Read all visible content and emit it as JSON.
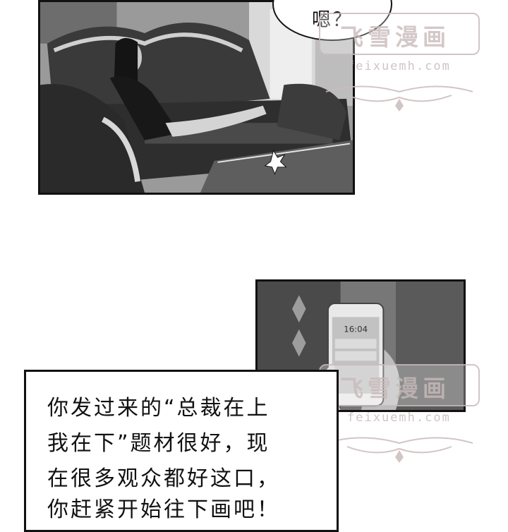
{
  "speech_bubble": {
    "text": "嗯？"
  },
  "narration": {
    "lines": [
      "你发过来的“总裁在上",
      "我在下”题材很好，现",
      "在很多观众都好这口，",
      "你赶紧开始往下画吧！"
    ]
  },
  "phone": {
    "time": "16:04"
  },
  "watermark": {
    "title": "飞雪漫画",
    "url": "feixuemh.com"
  }
}
